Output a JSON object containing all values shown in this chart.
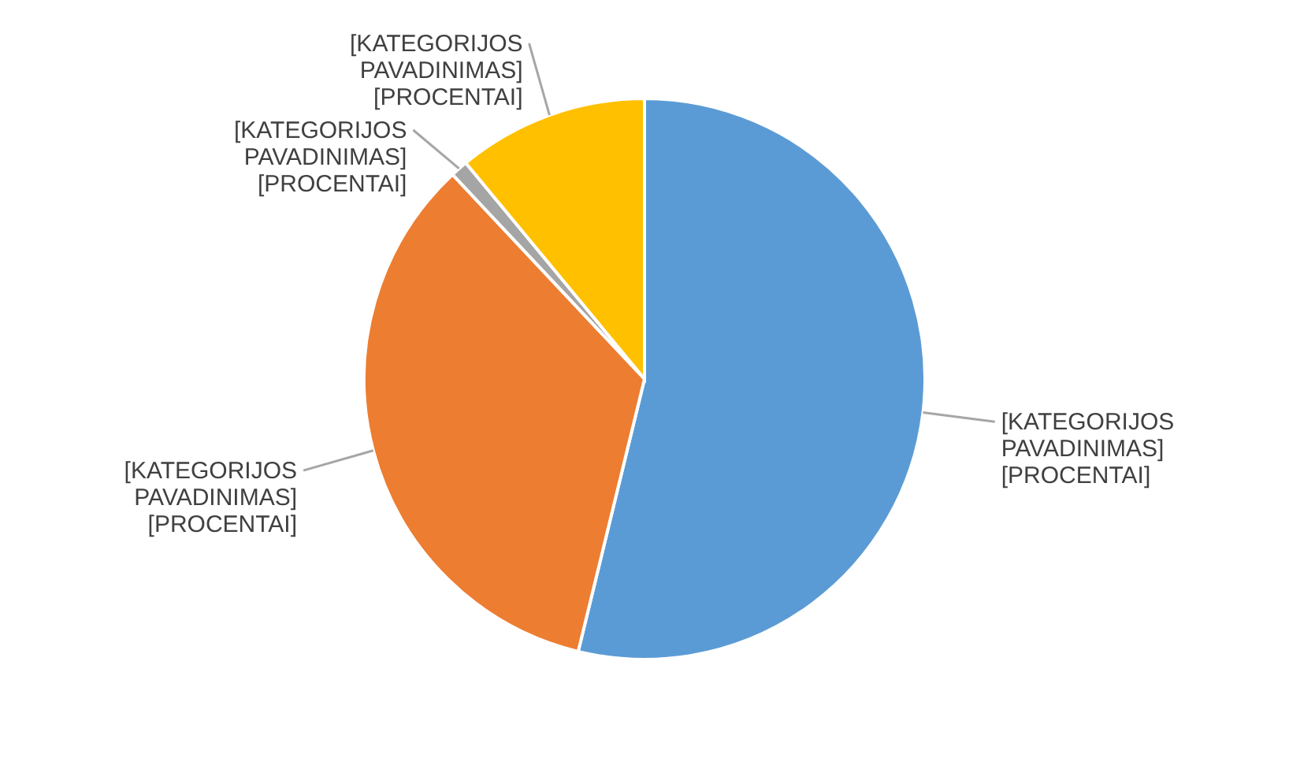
{
  "chart_data": {
    "type": "pie",
    "categories": [
      "[KATEGORIJOS PAVADINIMAS]",
      "[KATEGORIJOS PAVADINIMAS]",
      "[KATEGORIJOS PAVADINIMAS]",
      "[KATEGORIJOS PAVADINIMAS]"
    ],
    "values": [
      53.8,
      34.2,
      1.0,
      11.0
    ],
    "colors": [
      "#5b9bd5",
      "#ed7d31",
      "#a5a5a5",
      "#ffc000"
    ],
    "value_labels": [
      "[PROCENTAI]",
      "[PROCENTAI]",
      "[PROCENTAI]",
      "[PROCENTAI]"
    ]
  }
}
